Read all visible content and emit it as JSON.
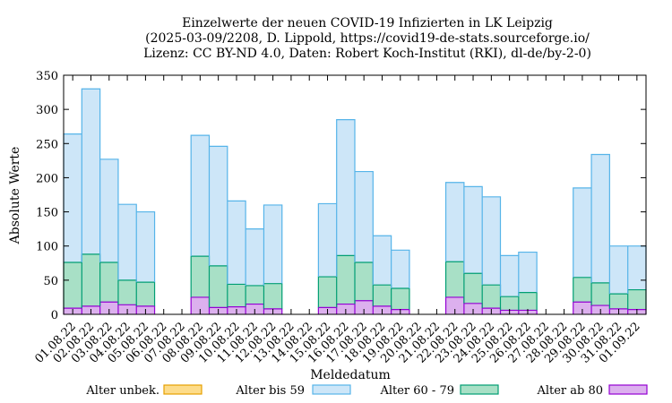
{
  "chart_data": {
    "type": "bar",
    "stacked": true,
    "title_lines": [
      "Einzelwerte der neuen COVID-19 Infizierten in LK Leipzig",
      "(2025-03-09/2208, D. Lippold, https://covid19-de-stats.sourceforge.io/",
      "Lizenz: CC BY-ND 4.0, Daten: Robert Koch-Institut (RKI), dl-de/by-2-0)"
    ],
    "xlabel": "Meldedatum",
    "ylabel": "Absolute Werte",
    "ylim": [
      0,
      350
    ],
    "yticks": [
      0,
      50,
      100,
      150,
      200,
      250,
      300,
      350
    ],
    "grid": false,
    "legend_position": "bottom",
    "categories": [
      "01.08.22",
      "02.08.22",
      "03.08.22",
      "04.08.22",
      "05.08.22",
      "06.08.22",
      "07.08.22",
      "08.08.22",
      "09.08.22",
      "10.08.22",
      "11.08.22",
      "12.08.22",
      "13.08.22",
      "14.08.22",
      "15.08.22",
      "16.08.22",
      "17.08.22",
      "18.08.22",
      "19.08.22",
      "20.08.22",
      "21.08.22",
      "22.08.22",
      "23.08.22",
      "24.08.22",
      "25.08.22",
      "26.08.22",
      "27.08.22",
      "28.08.22",
      "29.08.22",
      "30.08.22",
      "31.08.22",
      "01.09.22"
    ],
    "series": [
      {
        "name": "Alter unbek.",
        "color": "#fddc8a",
        "stroke": "#e69f00",
        "values": [
          0,
          0,
          0,
          0,
          0,
          0,
          0,
          0,
          0,
          0,
          0,
          0,
          0,
          0,
          0,
          0,
          0,
          0,
          0,
          0,
          0,
          0,
          0,
          0,
          0,
          0,
          0,
          0,
          0,
          0,
          0,
          0
        ]
      },
      {
        "name": "Alter bis 59",
        "color": "#cde6f8",
        "stroke": "#56b4e9",
        "values": [
          188,
          242,
          151,
          111,
          103,
          0,
          0,
          177,
          175,
          122,
          83,
          115,
          0,
          0,
          107,
          199,
          133,
          72,
          56,
          0,
          0,
          116,
          127,
          129,
          60,
          59,
          0,
          0,
          131,
          188,
          70,
          64
        ]
      },
      {
        "name": "Alter 60 - 79",
        "color": "#a8e0c6",
        "stroke": "#009e73",
        "values": [
          67,
          76,
          58,
          36,
          35,
          0,
          0,
          60,
          61,
          33,
          27,
          37,
          0,
          0,
          45,
          71,
          56,
          31,
          31,
          0,
          0,
          52,
          44,
          34,
          20,
          26,
          0,
          0,
          36,
          33,
          22,
          29
        ]
      },
      {
        "name": "Alter ab 80",
        "color": "#dcb0ee",
        "stroke": "#9400d3",
        "values": [
          9,
          12,
          18,
          14,
          12,
          0,
          0,
          25,
          10,
          11,
          15,
          8,
          0,
          0,
          10,
          15,
          20,
          12,
          7,
          0,
          0,
          25,
          16,
          9,
          6,
          6,
          0,
          0,
          18,
          13,
          8,
          7
        ]
      }
    ]
  }
}
